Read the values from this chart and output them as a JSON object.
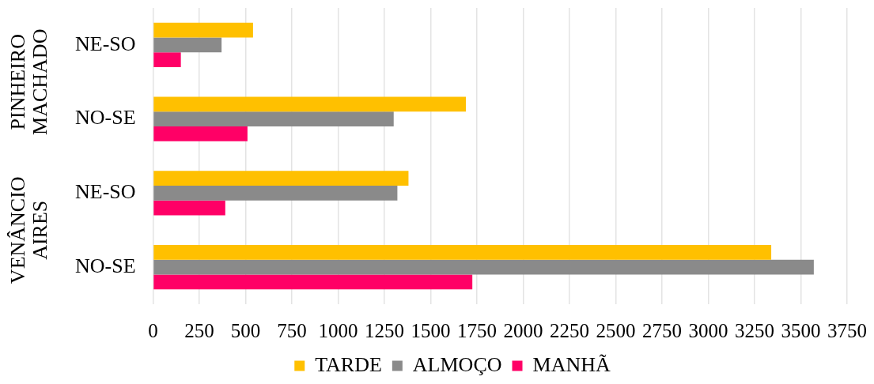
{
  "chart_data": {
    "type": "bar",
    "orientation": "horizontal",
    "categories": [
      "NE-SO",
      "NO-SE",
      "NE-SO",
      "NO-SE"
    ],
    "series": [
      {
        "name": "TARDE",
        "color": "#ffc000",
        "values": [
          540,
          1690,
          1380,
          3340
        ]
      },
      {
        "name": "ALMOÇO",
        "color": "#8a8a8a",
        "values": [
          370,
          1300,
          1320,
          3570
        ]
      },
      {
        "name": "MANHÃ",
        "color": "#ff0066",
        "values": [
          150,
          510,
          390,
          1725
        ]
      }
    ],
    "xlim": [
      0,
      3750
    ],
    "xticks": [
      0,
      250,
      500,
      750,
      1000,
      1250,
      1500,
      1750,
      2000,
      2250,
      2500,
      2750,
      3000,
      3250,
      3500,
      3750
    ],
    "annotations": [
      "PINHEIRO MACHADO",
      "VENÂNCIO AIRES"
    ],
    "grid": "x",
    "legend": "bottom"
  }
}
